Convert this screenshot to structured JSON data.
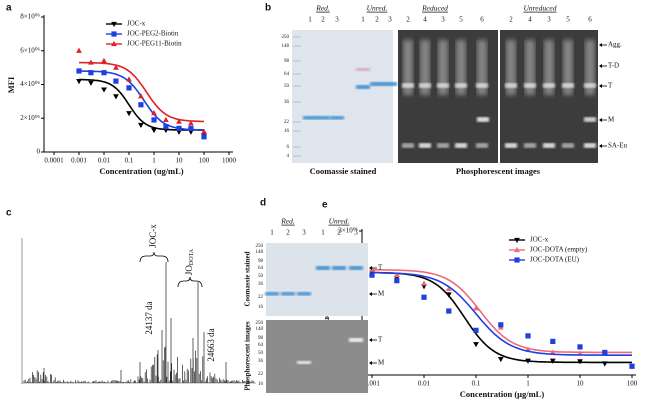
{
  "chart_data": [
    {
      "type": "line",
      "panel": "a",
      "x_label": "Concentration (ug/mL)",
      "y_label": "MFI",
      "x_scale": "log",
      "legend": "upper right",
      "x": [
        0.001,
        0.003,
        0.01,
        0.03,
        0.1,
        0.3,
        1,
        3,
        10,
        30,
        100
      ],
      "xlim": [
        0.0001,
        1000
      ],
      "xticks": [
        0.0001,
        0.001,
        0.01,
        0.1,
        1,
        10,
        100,
        1000
      ],
      "ylim": [
        0,
        8000000
      ],
      "yticks": [
        0,
        {
          "value": 2000000,
          "label": "2×10⁰⁶"
        },
        {
          "value": 4000000,
          "label": "4×10⁰⁶"
        },
        {
          "value": 6000000,
          "label": "6×10⁰⁶"
        },
        {
          "value": 8000000,
          "label": "8×10⁰⁶"
        }
      ],
      "series": [
        {
          "name": "JOC-x",
          "color": "#000000",
          "marker": "triangle-down",
          "values": [
            4200000,
            4100000,
            3700000,
            3300000,
            2300000,
            1600000,
            1300000,
            1300000,
            1200000,
            1200000,
            1000000
          ],
          "fit": {
            "top": 4300000,
            "bottom": 1300000,
            "ec50": 0.1,
            "hill": 1.3
          }
        },
        {
          "name": "JOC-PEG2-Biotin",
          "color": "#1f3fe0",
          "marker": "square",
          "values": [
            4800000,
            4700000,
            4700000,
            4200000,
            3800000,
            2800000,
            1900000,
            1500000,
            1400000,
            1400000,
            900000
          ],
          "fit": {
            "top": 4800000,
            "bottom": 1300000,
            "ec50": 0.4,
            "hill": 1.1
          }
        },
        {
          "name": "JOC-PEG11-Biotin",
          "color": "#e0202a",
          "marker": "triangle-up",
          "values": [
            6000000,
            5300000,
            5400000,
            5000000,
            4300000,
            3300000,
            2300000,
            1900000,
            1800000,
            1700000,
            1200000
          ],
          "fit": {
            "top": 5300000,
            "bottom": 1800000,
            "ec50": 0.5,
            "hill": 1.1
          }
        }
      ]
    },
    {
      "type": "line",
      "panel": "e",
      "x_label": "Concentration (μg/mL)",
      "y_label": "Mean Fluorescence Intensity",
      "x_scale": "log",
      "legend": "upper right",
      "x": [
        0.001,
        0.003,
        0.01,
        0.03,
        0.1,
        0.3,
        1,
        3,
        10,
        30,
        100
      ],
      "xlim": [
        0.001,
        100
      ],
      "xticks": [
        0.001,
        0.01,
        0.1,
        1,
        10,
        100
      ],
      "ylim": [
        500000,
        3000000
      ],
      "yticks": [
        {
          "value": 500000,
          "label": "5×10⁰⁵"
        },
        {
          "value": 1000000,
          "label": "1×10⁰⁶"
        },
        {
          "value": 1500000,
          "label": "1.5×10⁰⁶"
        },
        {
          "value": 2000000,
          "label": "2×10⁰⁶"
        },
        {
          "value": 2500000,
          "label": "2.5×10⁰⁶"
        },
        {
          "value": 3000000,
          "label": "3×10⁰⁶"
        }
      ],
      "series": [
        {
          "name": "JOC-x",
          "color": "#000000",
          "marker": "triangle-down",
          "values": [
            2250000,
            2150000,
            2000000,
            1850000,
            950000,
            680000,
            650000,
            650000,
            640000,
            600000,
            550000
          ],
          "fit": {
            "top": 2250000,
            "bottom": 620000,
            "ec50": 0.06,
            "hill": 1.5
          }
        },
        {
          "name": "JOC-DOTA (empty)",
          "color": "#ef6b78",
          "marker": "triangle-up",
          "values": [
            2300000,
            2200000,
            2050000,
            1950000,
            1600000,
            1250000,
            850000,
            800000,
            780000,
            780000,
            550000
          ],
          "fit": {
            "top": 2300000,
            "bottom": 800000,
            "ec50": 0.12,
            "hill": 1.4
          }
        },
        {
          "name": "JOC-DOTA (EU)",
          "color": "#1f3fe0",
          "marker": "square",
          "values": [
            2200000,
            2100000,
            1800000,
            1550000,
            1200000,
            1300000,
            1100000,
            1000000,
            900000,
            800000,
            550000
          ],
          "fit": {
            "top": 2250000,
            "bottom": 750000,
            "ec50": 0.1,
            "hill": 1.3
          }
        }
      ]
    }
  ],
  "panel_b": {
    "label": "b",
    "coomassie": {
      "headers": [
        "Red.",
        "Unred."
      ],
      "lanes": [
        [
          1,
          2,
          3
        ],
        [
          1,
          2,
          3
        ]
      ],
      "markers": [
        250,
        148,
        98,
        64,
        50,
        36,
        22,
        16,
        6,
        4
      ],
      "caption": "Coomassie stained"
    },
    "phosphorescent": {
      "headers": [
        "Reduced",
        "Unreduced"
      ],
      "lanes": [
        [
          2,
          4,
          3,
          5,
          6
        ],
        [
          2,
          4,
          3,
          5,
          6
        ]
      ],
      "caption": "Phosphorescent images"
    },
    "bands": [
      "Agg.",
      "T-D",
      "T",
      "M",
      "SA-Eu"
    ]
  },
  "panel_c": {
    "label": "c",
    "peaks": [
      {
        "name": "JOC-x",
        "mass": "24137 da"
      },
      {
        "name": "JO",
        "subscript": "DOTA",
        "mass": "24663 da"
      }
    ]
  },
  "panel_d": {
    "label": "d",
    "headers": [
      "Red.",
      "Unred."
    ],
    "lanes": [
      [
        1,
        2,
        3
      ],
      [
        1,
        2,
        3
      ]
    ],
    "gels": [
      {
        "caption": "Coomassie stained",
        "markers": [
          250,
          148,
          98,
          64,
          50,
          36,
          22,
          16
        ],
        "bands": [
          "T",
          "M"
        ]
      },
      {
        "caption": "Phosphorescent images",
        "markers": [
          250,
          148,
          98,
          64,
          50,
          36,
          22,
          16
        ],
        "bands": [
          "T",
          "M"
        ]
      }
    ]
  }
}
